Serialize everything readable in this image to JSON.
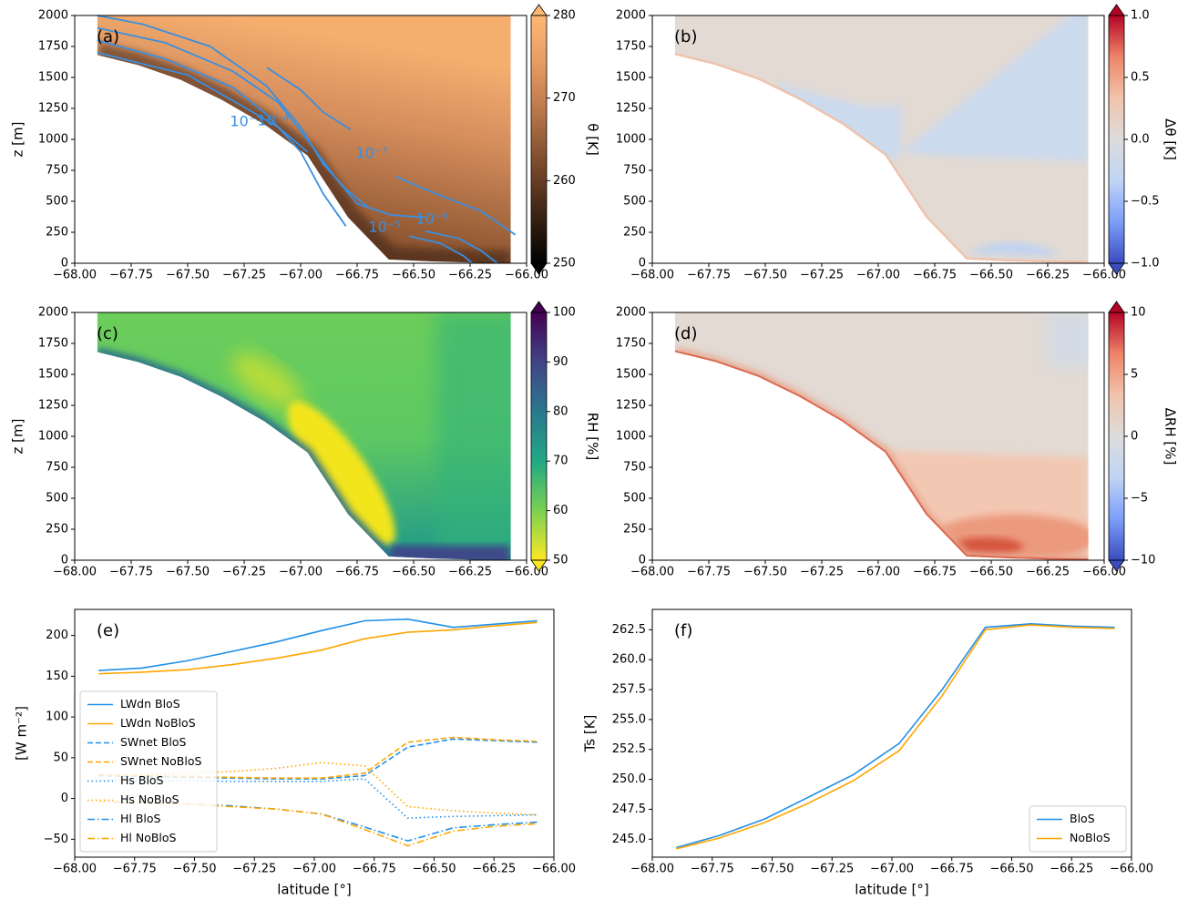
{
  "chart_data": [
    {
      "type": "contour",
      "panel_label": "(a)",
      "ylabel": "z [m]",
      "xlim": [
        -68,
        -66
      ],
      "ylim": [
        0,
        2000
      ],
      "xticks": [
        {
          "value": -68,
          "label": "−68.00"
        },
        {
          "value": -67.75,
          "label": "−67.75"
        },
        {
          "value": -67.5,
          "label": "−67.50"
        },
        {
          "value": -67.25,
          "label": "−67.25"
        },
        {
          "value": -67,
          "label": "−67.00"
        },
        {
          "value": -66.75,
          "label": "−66.75"
        },
        {
          "value": -66.5,
          "label": "−66.50"
        },
        {
          "value": -66.25,
          "label": "−66.25"
        },
        {
          "value": -66,
          "label": "−66.00"
        }
      ],
      "yticks": [
        0,
        250,
        500,
        750,
        1000,
        1250,
        1500,
        1750,
        2000
      ],
      "annotations": [
        "10⁻⁵",
        "10⁻⁴",
        "10⁻⁷",
        "10⁻⁵",
        "10⁻⁶"
      ],
      "colorbar": {
        "label": "θ [K]",
        "lim": [
          250,
          280
        ],
        "ticks": [
          250,
          260,
          270,
          280
        ],
        "colors": [
          "#000000",
          "#3d2414",
          "#7a4a2c",
          "#b57448",
          "#e69a62",
          "#ffb774"
        ],
        "extend": "both"
      }
    },
    {
      "type": "contour",
      "panel_label": "(b)",
      "xlim": [
        -68,
        -66
      ],
      "ylim": [
        0,
        2000
      ],
      "xticks": [
        {
          "value": -68,
          "label": "−68.00"
        },
        {
          "value": -67.75,
          "label": "−67.75"
        },
        {
          "value": -67.5,
          "label": "−67.50"
        },
        {
          "value": -67.25,
          "label": "−67.25"
        },
        {
          "value": -67,
          "label": "−67.00"
        },
        {
          "value": -66.75,
          "label": "−66.75"
        },
        {
          "value": -66.5,
          "label": "−66.50"
        },
        {
          "value": -66.25,
          "label": "−66.25"
        },
        {
          "value": -66,
          "label": "−66.00"
        }
      ],
      "yticks": [
        0,
        250,
        500,
        750,
        1000,
        1250,
        1500,
        1750,
        2000
      ],
      "colorbar": {
        "label": "Δθ [K]",
        "lim": [
          -1,
          1
        ],
        "ticks": [
          {
            "value": -1,
            "label": "−1.0"
          },
          {
            "value": -0.5,
            "label": "−0.5"
          },
          {
            "value": 0,
            "label": "0.0"
          },
          0.5,
          {
            "value": 1,
            "label": "1.0"
          }
        ],
        "colors": [
          "#3b4cc0",
          "#7b9ff9",
          "#c0d4f5",
          "#dddcdc",
          "#f2c3ab",
          "#ee8468",
          "#b40426"
        ],
        "extend": "both"
      }
    },
    {
      "type": "contour",
      "panel_label": "(c)",
      "ylabel": "z [m]",
      "xlim": [
        -68,
        -66
      ],
      "ylim": [
        0,
        2000
      ],
      "xticks": [
        {
          "value": -68,
          "label": "−68.00"
        },
        {
          "value": -67.75,
          "label": "−67.75"
        },
        {
          "value": -67.5,
          "label": "−67.50"
        },
        {
          "value": -67.25,
          "label": "−67.25"
        },
        {
          "value": -67,
          "label": "−67.00"
        },
        {
          "value": -66.75,
          "label": "−66.75"
        },
        {
          "value": -66.5,
          "label": "−66.50"
        },
        {
          "value": -66.25,
          "label": "−66.25"
        },
        {
          "value": -66,
          "label": "−66.00"
        }
      ],
      "yticks": [
        0,
        250,
        500,
        750,
        1000,
        1250,
        1500,
        1750,
        2000
      ],
      "colorbar": {
        "label": "RH [%]",
        "lim": [
          50,
          100
        ],
        "ticks": [
          50,
          60,
          70,
          80,
          90,
          100
        ],
        "colors": [
          "#fde725",
          "#7ad151",
          "#22a884",
          "#2a788e",
          "#414487",
          "#440154"
        ],
        "extend": "both"
      }
    },
    {
      "type": "contour",
      "panel_label": "(d)",
      "xlim": [
        -68,
        -66
      ],
      "ylim": [
        0,
        2000
      ],
      "xticks": [
        {
          "value": -68,
          "label": "−68.00"
        },
        {
          "value": -67.75,
          "label": "−67.75"
        },
        {
          "value": -67.5,
          "label": "−67.50"
        },
        {
          "value": -67.25,
          "label": "−67.25"
        },
        {
          "value": -67,
          "label": "−67.00"
        },
        {
          "value": -66.75,
          "label": "−66.75"
        },
        {
          "value": -66.5,
          "label": "−66.50"
        },
        {
          "value": -66.25,
          "label": "−66.25"
        },
        {
          "value": -66,
          "label": "−66.00"
        }
      ],
      "yticks": [
        0,
        250,
        500,
        750,
        1000,
        1250,
        1500,
        1750,
        2000
      ],
      "colorbar": {
        "label": "ΔRH [%]",
        "lim": [
          -10,
          10
        ],
        "ticks": [
          {
            "value": -10,
            "label": "−10"
          },
          {
            "value": -5,
            "label": "−5"
          },
          0,
          5,
          10
        ],
        "colors": [
          "#3b4cc0",
          "#7b9ff9",
          "#c0d4f5",
          "#dddcdc",
          "#f2c3ab",
          "#ee8468",
          "#b40426"
        ],
        "extend": "both"
      }
    },
    {
      "type": "line",
      "panel_label": "(e)",
      "xlabel": "latitude [°]",
      "ylabel": "[W m⁻²]",
      "xlim": [
        -68,
        -66
      ],
      "ylim": [
        -72,
        232
      ],
      "xticks": [
        {
          "value": -68,
          "label": "−68.00"
        },
        {
          "value": -67.75,
          "label": "−67.75"
        },
        {
          "value": -67.5,
          "label": "−67.50"
        },
        {
          "value": -67.25,
          "label": "−67.25"
        },
        {
          "value": -67,
          "label": "−67.00"
        },
        {
          "value": -66.75,
          "label": "−66.75"
        },
        {
          "value": -66.5,
          "label": "−66.50"
        },
        {
          "value": -66.25,
          "label": "−66.25"
        },
        {
          "value": -66,
          "label": "−66.00"
        }
      ],
      "yticks": [
        {
          "value": -50,
          "label": "−50"
        },
        0,
        50,
        100,
        150,
        200
      ],
      "legend": "lower left",
      "x": [
        -67.9,
        -67.72,
        -67.53,
        -67.35,
        -67.16,
        -66.97,
        -66.79,
        -66.61,
        -66.42,
        -66.24,
        -66.07
      ],
      "series": [
        {
          "name": "LWdn BloS",
          "color": "#1f8fe8",
          "dash": "solid",
          "values": [
            157,
            160,
            169,
            180,
            192,
            206,
            218,
            220,
            210,
            214,
            218
          ]
        },
        {
          "name": "LWdn NoBloS",
          "color": "#ffa500",
          "dash": "solid",
          "values": [
            153,
            155,
            158,
            164,
            172,
            182,
            196,
            204,
            207,
            212,
            216
          ]
        },
        {
          "name": "SWnet BloS",
          "color": "#1f8fe8",
          "dash": "dashed",
          "values": [
            28,
            27,
            26,
            25,
            24,
            24,
            28,
            63,
            73,
            71,
            69
          ]
        },
        {
          "name": "SWnet NoBloS",
          "color": "#ffa500",
          "dash": "dashed",
          "values": [
            29,
            28,
            27,
            26,
            25,
            25,
            31,
            69,
            75,
            72,
            70
          ]
        },
        {
          "name": "Hs BloS",
          "color": "#1f8fe8",
          "dash": "dotted",
          "values": [
            23,
            22,
            22,
            21,
            21,
            21,
            24,
            -24,
            -22,
            -21,
            -20
          ]
        },
        {
          "name": "Hs NoBloS",
          "color": "#ffa500",
          "dash": "dotted",
          "values": [
            28,
            30,
            31,
            33,
            37,
            44,
            40,
            -10,
            -15,
            -18,
            -20
          ]
        },
        {
          "name": "Hl BloS",
          "color": "#1f8fe8",
          "dash": "dashdot",
          "values": [
            -4,
            -5,
            -7,
            -9,
            -13,
            -19,
            -35,
            -52,
            -36,
            -32,
            -29
          ]
        },
        {
          "name": "Hl NoBloS",
          "color": "#ffa500",
          "dash": "dashdot",
          "values": [
            -4,
            -5,
            -7,
            -10,
            -13,
            -19,
            -38,
            -58,
            -40,
            -34,
            -31
          ]
        }
      ]
    },
    {
      "type": "line",
      "panel_label": "(f)",
      "xlabel": "latitude [°]",
      "ylabel": "Ts [K]",
      "xlim": [
        -68,
        -66
      ],
      "ylim": [
        243.5,
        264.2
      ],
      "xticks": [
        {
          "value": -68,
          "label": "−68.00"
        },
        {
          "value": -67.75,
          "label": "−67.75"
        },
        {
          "value": -67.5,
          "label": "−67.50"
        },
        {
          "value": -67.25,
          "label": "−67.25"
        },
        {
          "value": -67,
          "label": "−67.00"
        },
        {
          "value": -66.75,
          "label": "−66.75"
        },
        {
          "value": -66.5,
          "label": "−66.50"
        },
        {
          "value": -66.25,
          "label": "−66.25"
        },
        {
          "value": -66,
          "label": "−66.00"
        }
      ],
      "yticks": [
        {
          "value": 245,
          "label": "245.0"
        },
        247.5,
        {
          "value": 250,
          "label": "250.0"
        },
        252.5,
        {
          "value": 255,
          "label": "255.0"
        },
        257.5,
        {
          "value": 260,
          "label": "260.0"
        },
        262.5
      ],
      "legend": "lower right",
      "x": [
        -67.9,
        -67.72,
        -67.53,
        -67.35,
        -67.16,
        -66.97,
        -66.79,
        -66.61,
        -66.42,
        -66.24,
        -66.07
      ],
      "series": [
        {
          "name": "BloS",
          "color": "#1f8fe8",
          "dash": "solid",
          "values": [
            244.3,
            245.3,
            246.7,
            248.5,
            250.4,
            253.0,
            257.5,
            262.7,
            263.0,
            262.8,
            262.7
          ]
        },
        {
          "name": "NoBloS",
          "color": "#ffa500",
          "dash": "solid",
          "values": [
            244.2,
            245.1,
            246.4,
            248.0,
            249.9,
            252.4,
            257.0,
            262.5,
            262.9,
            262.7,
            262.6
          ]
        }
      ]
    }
  ]
}
